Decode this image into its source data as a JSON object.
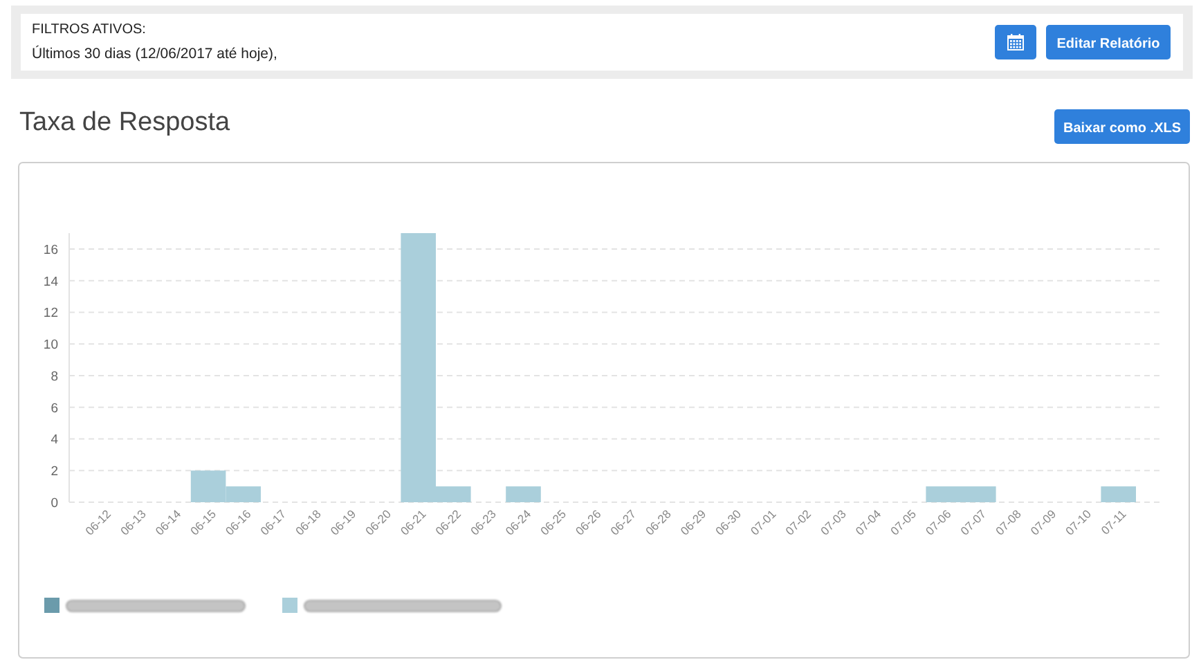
{
  "chart_data": {
    "type": "bar",
    "title": "Taxa de Resposta",
    "annotations": [
      "FILTROS ATIVOS:",
      "Últimos 30 dias (12/06/2017 até hoje),",
      "Editar Relatório",
      "Baixar como .XLS"
    ],
    "categories": [
      "06-12",
      "06-13",
      "06-14",
      "06-15",
      "06-16",
      "06-17",
      "06-18",
      "06-19",
      "06-20",
      "06-21",
      "06-22",
      "06-23",
      "06-24",
      "06-25",
      "06-26",
      "06-27",
      "06-28",
      "06-29",
      "06-30",
      "07-01",
      "07-02",
      "07-03",
      "07-04",
      "07-05",
      "07-06",
      "07-07",
      "07-08",
      "07-09",
      "07-10",
      "07-11"
    ],
    "values": [
      0,
      0,
      0,
      2,
      1,
      0,
      0,
      0,
      0,
      17,
      1,
      0,
      1,
      0,
      0,
      0,
      0,
      0,
      0,
      0,
      0,
      0,
      0,
      0,
      1,
      1,
      0,
      0,
      0,
      1
    ],
    "color": "#aacfdb",
    "ylim": [
      0,
      17
    ],
    "yticks": [
      0,
      2,
      4,
      6,
      8,
      10,
      12,
      14,
      16
    ],
    "grid": "y"
  }
}
